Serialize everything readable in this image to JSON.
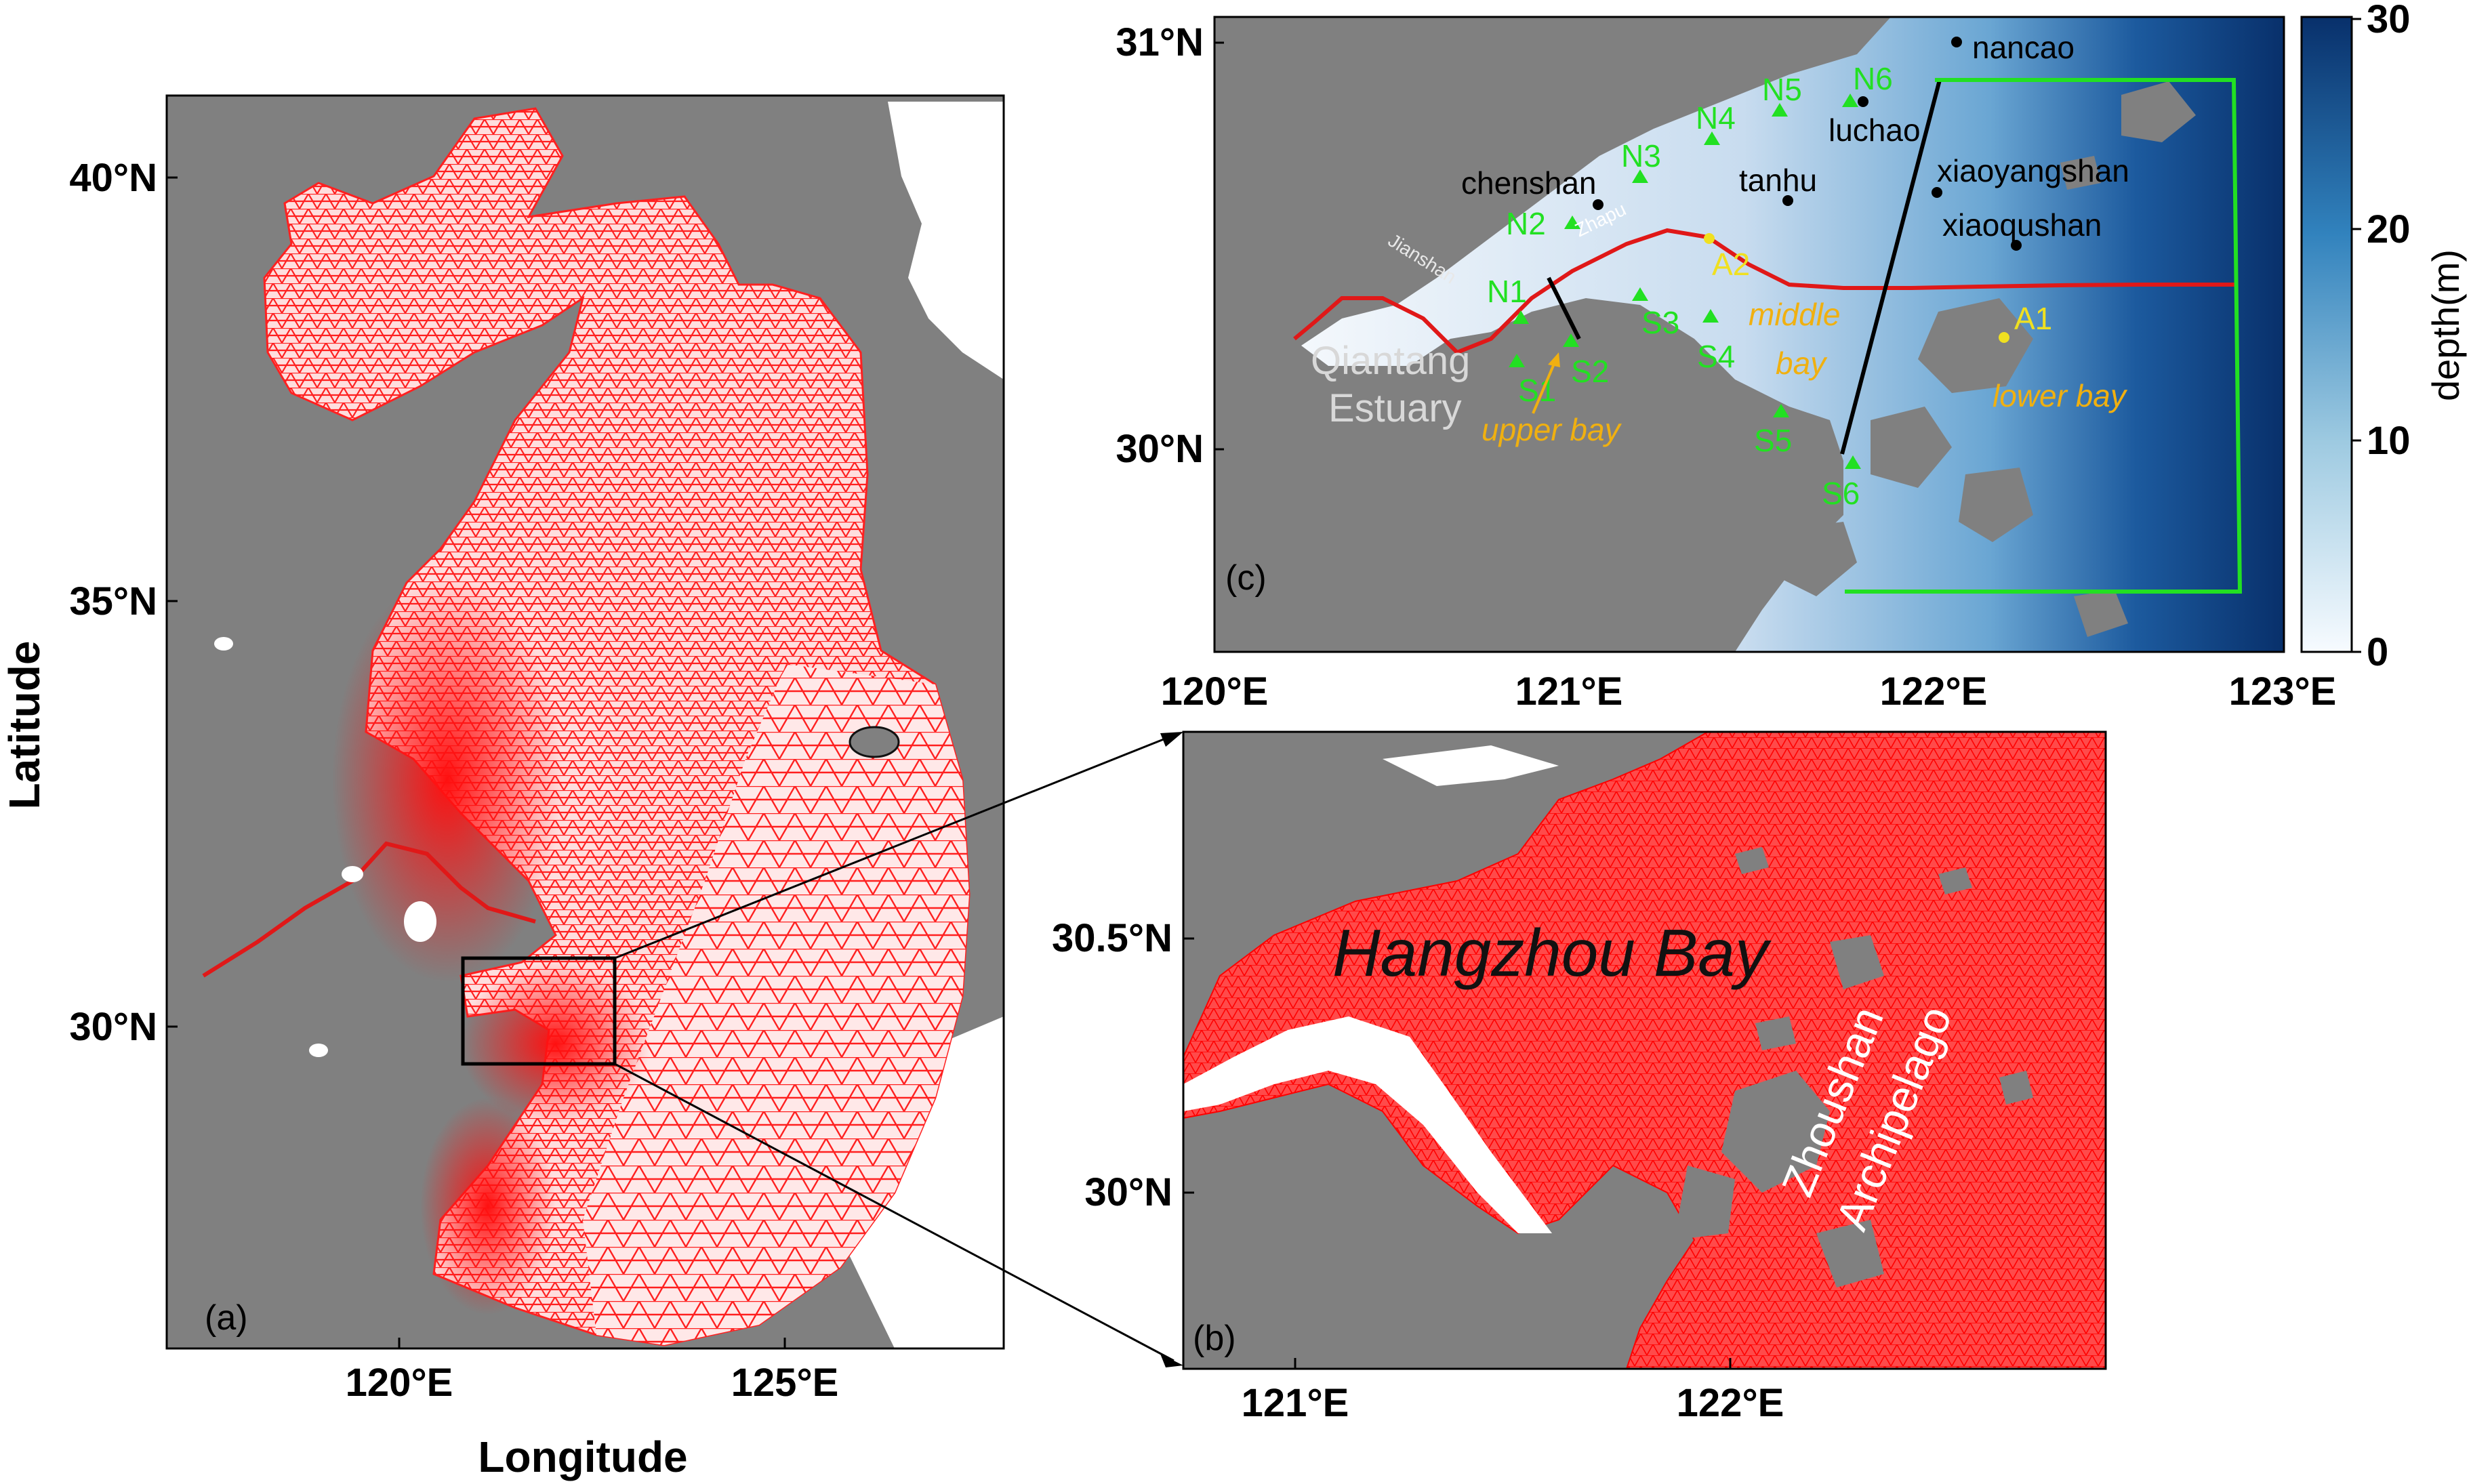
{
  "colors": {
    "land": "#808080",
    "mesh": "#ff2020",
    "mesh_dense": "#ff1414",
    "river": "#e01818",
    "station_green": "#22e022",
    "station_yellow": "#f0e020",
    "bay_label": "#f0b010",
    "box_green": "#22e022",
    "depth_light": "#f0f6fb",
    "depth_dark": "#08306b"
  },
  "panel_a": {
    "label": "(a)",
    "y_ticks": [
      "40°N",
      "35°N",
      "30°N"
    ],
    "x_ticks": [
      "120°E",
      "125°E"
    ],
    "xlabel": "Longitude",
    "ylabel": "Latitude"
  },
  "panel_b": {
    "label": "(b)",
    "y_ticks": [
      "30.5°N",
      "30°N"
    ],
    "x_ticks": [
      "121°E",
      "122°E"
    ],
    "title": "Hangzhou Bay",
    "archipelago_line1": "Zhoushan",
    "archipelago_line2": "Archipelago"
  },
  "panel_c": {
    "label": "(c)",
    "y_ticks": [
      "31°N",
      "30°N"
    ],
    "x_ticks": [
      "120°E",
      "121°E",
      "122°E",
      "123°E"
    ],
    "colorbar": {
      "label": "depth(m)",
      "ticks": [
        "0",
        "10",
        "20",
        "30"
      ],
      "min": 0,
      "max": 30
    },
    "estuary_line1": "Qiantang",
    "estuary_line2": "Estuary",
    "small_labels": {
      "jianshan": "Jianshan",
      "zhapu": "Zhapu"
    },
    "black_sites": [
      "nancao",
      "luchao",
      "chenshan",
      "tanhu",
      "xiaoyangshan",
      "xiaoqushan"
    ],
    "north_stations": [
      "N1",
      "N2",
      "N3",
      "N4",
      "N5",
      "N6"
    ],
    "south_stations": [
      "S1",
      "S2",
      "S3",
      "S4",
      "S5",
      "S6"
    ],
    "yellow_stations": [
      "A1",
      "A2"
    ],
    "bay_sections": [
      "upper bay",
      "middle",
      "bay",
      "lower bay"
    ]
  }
}
